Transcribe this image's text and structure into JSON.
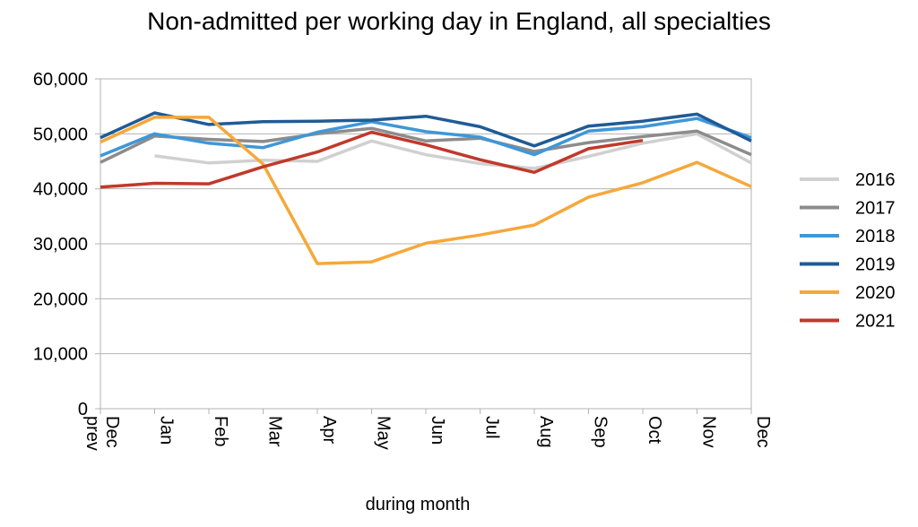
{
  "chart_data": {
    "type": "line",
    "title": "Non-admitted per working day in England, all specialties",
    "xlabel": "during  month",
    "ylabel": "",
    "categories": [
      "Dec prev",
      "Jan",
      "Feb",
      "Mar",
      "Apr",
      "May",
      "Jun",
      "Jul",
      "Aug",
      "Sep",
      "Oct",
      "Nov",
      "Dec"
    ],
    "ylim": [
      0,
      60000
    ],
    "yticks": [
      "0",
      "10,000",
      "20,000",
      "30,000",
      "40,000",
      "50,000",
      "60,000"
    ],
    "ytick_values": [
      0,
      10000,
      20000,
      30000,
      40000,
      50000,
      60000
    ],
    "grid": true,
    "legend_position": "right",
    "series": [
      {
        "name": "2016",
        "color": "#d0d0d0",
        "values": [
          null,
          46000,
          44700,
          45200,
          45000,
          48700,
          46200,
          44600,
          43700,
          45900,
          48300,
          50000,
          44700
        ]
      },
      {
        "name": "2017",
        "color": "#8c8c8c",
        "values": [
          44800,
          49600,
          49000,
          48600,
          50000,
          51000,
          48700,
          49200,
          46800,
          48400,
          49500,
          50500,
          46200
        ]
      },
      {
        "name": "2018",
        "color": "#3f97d8",
        "values": [
          46000,
          50000,
          48300,
          47500,
          50300,
          52200,
          50400,
          49400,
          46200,
          50500,
          51300,
          52800,
          49300
        ]
      },
      {
        "name": "2019",
        "color": "#1f5b96",
        "values": [
          49300,
          53800,
          51700,
          52200,
          52300,
          52500,
          53200,
          51300,
          47800,
          51400,
          52300,
          53600,
          48700
        ]
      },
      {
        "name": "2020",
        "color": "#f5a83a",
        "values": [
          48500,
          53000,
          53000,
          44500,
          26400,
          26700,
          30100,
          31600,
          33400,
          38500,
          41100,
          44800,
          40400
        ]
      },
      {
        "name": "2021",
        "color": "#c0392b",
        "values": [
          40300,
          41000,
          40900,
          44000,
          46700,
          50300,
          48000,
          45300,
          43000,
          47300,
          48800,
          null,
          null
        ]
      }
    ]
  }
}
